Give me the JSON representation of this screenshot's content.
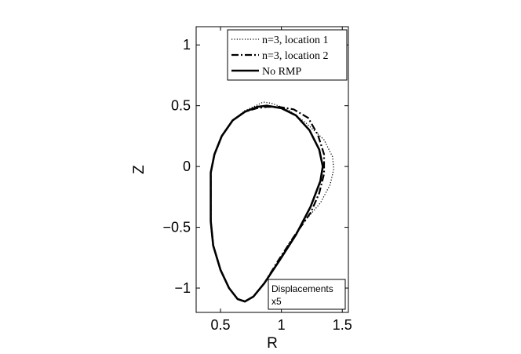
{
  "chart_data": {
    "type": "line",
    "title": "",
    "xlabel": "R",
    "ylabel": "Z",
    "xlim": [
      0.3,
      1.55
    ],
    "ylim": [
      -1.2,
      1.15
    ],
    "xticks": [
      0.5,
      1,
      1.5
    ],
    "xtick_labels": [
      "0.5",
      "1",
      "1.5"
    ],
    "yticks": [
      -1,
      -0.5,
      0,
      0.5,
      1
    ],
    "ytick_labels": [
      "−1",
      "−0.5",
      "0",
      "0.5",
      "1"
    ],
    "grid": false,
    "legend_position": "top-right",
    "annotation": {
      "line1": "Displacements",
      "line2": "x5"
    },
    "series": [
      {
        "name": "n=3, location 1",
        "style": "dotted",
        "points": [
          [
            0.42,
            -0.2
          ],
          [
            0.42,
            -0.45
          ],
          [
            0.44,
            -0.65
          ],
          [
            0.5,
            -0.85
          ],
          [
            0.57,
            -1.0
          ],
          [
            0.64,
            -1.09
          ],
          [
            0.7,
            -1.11
          ],
          [
            0.77,
            -1.07
          ],
          [
            0.85,
            -0.97
          ],
          [
            0.95,
            -0.82
          ],
          [
            1.07,
            -0.62
          ],
          [
            1.19,
            -0.45
          ],
          [
            1.32,
            -0.3
          ],
          [
            1.4,
            -0.15
          ],
          [
            1.43,
            -0.02
          ],
          [
            1.42,
            0.08
          ],
          [
            1.35,
            0.22
          ],
          [
            1.2,
            0.36
          ],
          [
            1.05,
            0.47
          ],
          [
            0.92,
            0.52
          ],
          [
            0.85,
            0.53
          ],
          [
            0.79,
            0.5
          ],
          [
            0.7,
            0.46
          ],
          [
            0.6,
            0.38
          ],
          [
            0.51,
            0.25
          ],
          [
            0.45,
            0.1
          ],
          [
            0.42,
            -0.05
          ],
          [
            0.42,
            -0.2
          ]
        ]
      },
      {
        "name": "n=3, location 2",
        "style": "dashdot",
        "points": [
          [
            0.42,
            -0.2
          ],
          [
            0.42,
            -0.45
          ],
          [
            0.44,
            -0.65
          ],
          [
            0.5,
            -0.85
          ],
          [
            0.57,
            -1.0
          ],
          [
            0.64,
            -1.09
          ],
          [
            0.7,
            -1.11
          ],
          [
            0.77,
            -1.07
          ],
          [
            0.86,
            -0.96
          ],
          [
            0.97,
            -0.78
          ],
          [
            1.1,
            -0.58
          ],
          [
            1.24,
            -0.38
          ],
          [
            1.31,
            -0.22
          ],
          [
            1.35,
            -0.06
          ],
          [
            1.35,
            0.1
          ],
          [
            1.3,
            0.26
          ],
          [
            1.22,
            0.4
          ],
          [
            1.1,
            0.47
          ],
          [
            0.98,
            0.49
          ],
          [
            0.88,
            0.49
          ],
          [
            0.8,
            0.48
          ],
          [
            0.7,
            0.45
          ],
          [
            0.6,
            0.38
          ],
          [
            0.51,
            0.25
          ],
          [
            0.45,
            0.1
          ],
          [
            0.42,
            -0.05
          ],
          [
            0.42,
            -0.2
          ]
        ]
      },
      {
        "name": "No RMP",
        "style": "solid",
        "points": [
          [
            0.42,
            -0.2
          ],
          [
            0.42,
            -0.45
          ],
          [
            0.44,
            -0.65
          ],
          [
            0.5,
            -0.85
          ],
          [
            0.57,
            -1.0
          ],
          [
            0.64,
            -1.09
          ],
          [
            0.7,
            -1.11
          ],
          [
            0.77,
            -1.07
          ],
          [
            0.86,
            -0.96
          ],
          [
            0.98,
            -0.78
          ],
          [
            1.12,
            -0.56
          ],
          [
            1.24,
            -0.33
          ],
          [
            1.32,
            -0.12
          ],
          [
            1.34,
            0.0
          ],
          [
            1.31,
            0.14
          ],
          [
            1.23,
            0.3
          ],
          [
            1.12,
            0.42
          ],
          [
            1.0,
            0.48
          ],
          [
            0.88,
            0.5
          ],
          [
            0.8,
            0.49
          ],
          [
            0.7,
            0.45
          ],
          [
            0.6,
            0.38
          ],
          [
            0.51,
            0.25
          ],
          [
            0.45,
            0.1
          ],
          [
            0.42,
            -0.05
          ],
          [
            0.42,
            -0.2
          ]
        ]
      }
    ]
  }
}
